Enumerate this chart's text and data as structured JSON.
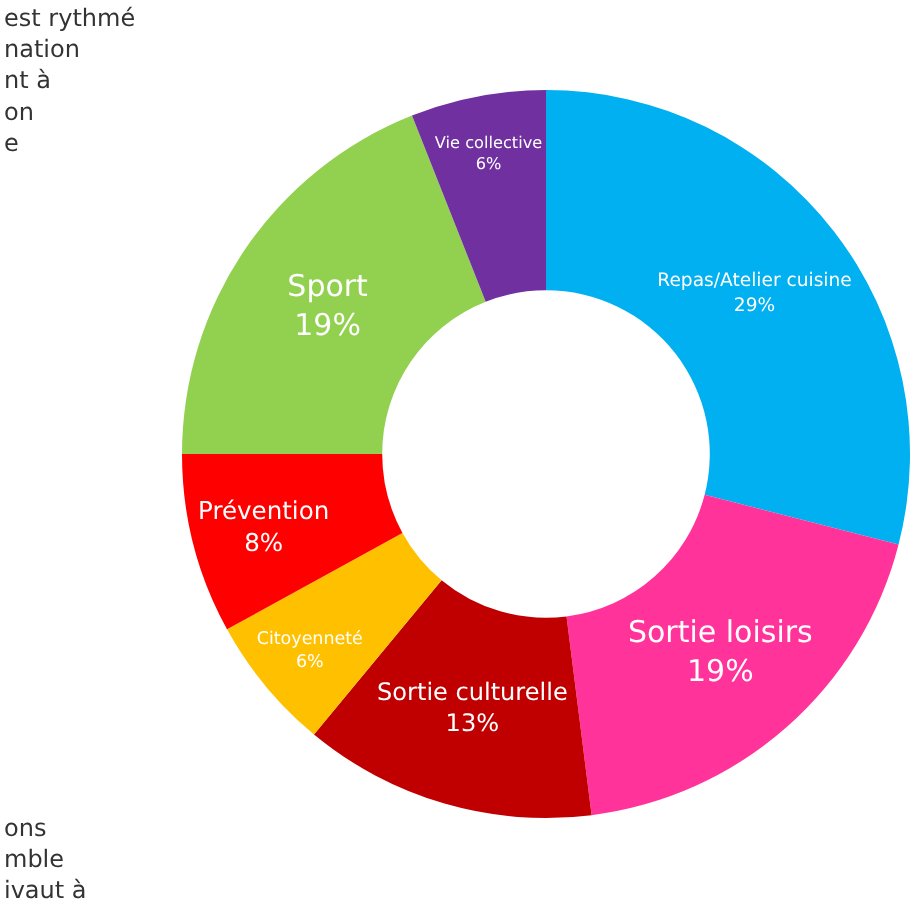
{
  "chart_data": {
    "type": "donut",
    "categories": [
      "Repas/Atelier cuisine",
      "Sortie loisirs",
      "Sortie culturelle",
      "Citoyenneté",
      "Prévention",
      "Sport",
      "Vie collective"
    ],
    "values": [
      29,
      19,
      13,
      6,
      8,
      19,
      6
    ],
    "value_labels": [
      "29%",
      "19%",
      "13%",
      "6%",
      "8%",
      "19%",
      "6%"
    ],
    "colors": [
      "#00b0f0",
      "#ff3399",
      "#c00000",
      "#ffc000",
      "#ff0000",
      "#92d050",
      "#7030a0"
    ],
    "annotations": [
      "est rythmé\nnation\nnt à\non\ne",
      "ons\nmble\nivaut à"
    ],
    "legend": false
  }
}
